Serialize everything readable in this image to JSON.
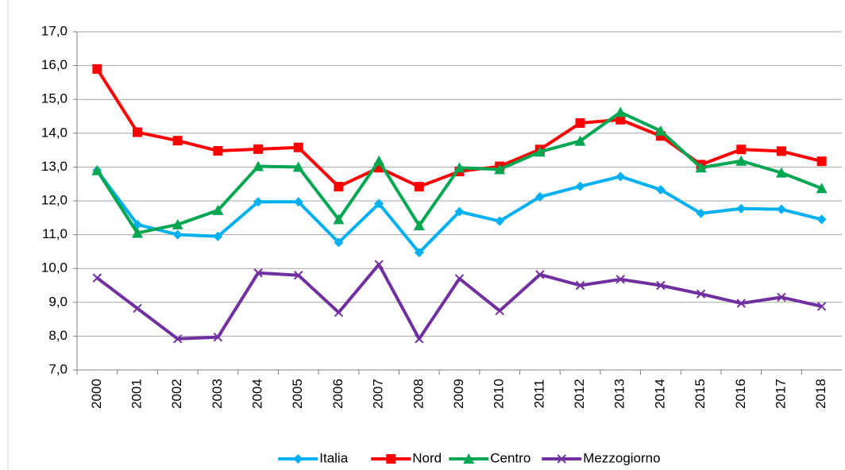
{
  "chart_data": {
    "type": "line",
    "categories": [
      "2000",
      "2001",
      "2002",
      "2003",
      "2004",
      "2005",
      "2006",
      "2007",
      "2008",
      "2009",
      "2010",
      "2011",
      "2012",
      "2013",
      "2014",
      "2015",
      "2016",
      "2017",
      "2018"
    ],
    "series": [
      {
        "name": "Italia",
        "color": "#00b0f0",
        "marker": "diamond",
        "values": [
          12.9,
          11.3,
          11.0,
          10.95,
          11.97,
          11.97,
          10.77,
          11.92,
          10.47,
          11.68,
          11.4,
          12.12,
          12.43,
          12.72,
          12.33,
          11.63,
          11.77,
          11.75,
          11.45
        ]
      },
      {
        "name": "Nord",
        "color": "#ff0000",
        "marker": "square",
        "values": [
          15.9,
          14.03,
          13.78,
          13.48,
          13.53,
          13.58,
          12.42,
          12.98,
          12.42,
          12.87,
          13.02,
          13.52,
          14.3,
          14.4,
          13.92,
          13.07,
          13.52,
          13.47,
          13.17
        ]
      },
      {
        "name": "Centro",
        "color": "#00a651",
        "marker": "triangle",
        "values": [
          12.9,
          11.05,
          11.3,
          11.72,
          13.02,
          13.0,
          11.45,
          13.18,
          11.27,
          12.98,
          12.93,
          13.45,
          13.77,
          14.62,
          14.07,
          12.98,
          13.18,
          12.83,
          12.37
        ]
      },
      {
        "name": "Mezzogiorno",
        "color": "#7030a0",
        "marker": "x",
        "values": [
          9.72,
          8.82,
          7.92,
          7.97,
          9.87,
          9.8,
          8.7,
          10.12,
          7.92,
          9.7,
          8.75,
          9.82,
          9.5,
          9.68,
          9.5,
          9.25,
          8.97,
          9.15,
          8.88
        ]
      }
    ],
    "ylim": [
      7,
      17
    ],
    "yticks": [
      {
        "value": 7,
        "label": "7,0"
      },
      {
        "value": 8,
        "label": "8,0"
      },
      {
        "value": 9,
        "label": "9,0"
      },
      {
        "value": 10,
        "label": "10,0"
      },
      {
        "value": 11,
        "label": "11,0"
      },
      {
        "value": 12,
        "label": "12,0"
      },
      {
        "value": 13,
        "label": "13,0"
      },
      {
        "value": 14,
        "label": "14,0"
      },
      {
        "value": 15,
        "label": "15,0"
      },
      {
        "value": 16,
        "label": "16,0"
      },
      {
        "value": 17,
        "label": "17,0"
      }
    ],
    "grid": true,
    "legend": "bottom"
  }
}
